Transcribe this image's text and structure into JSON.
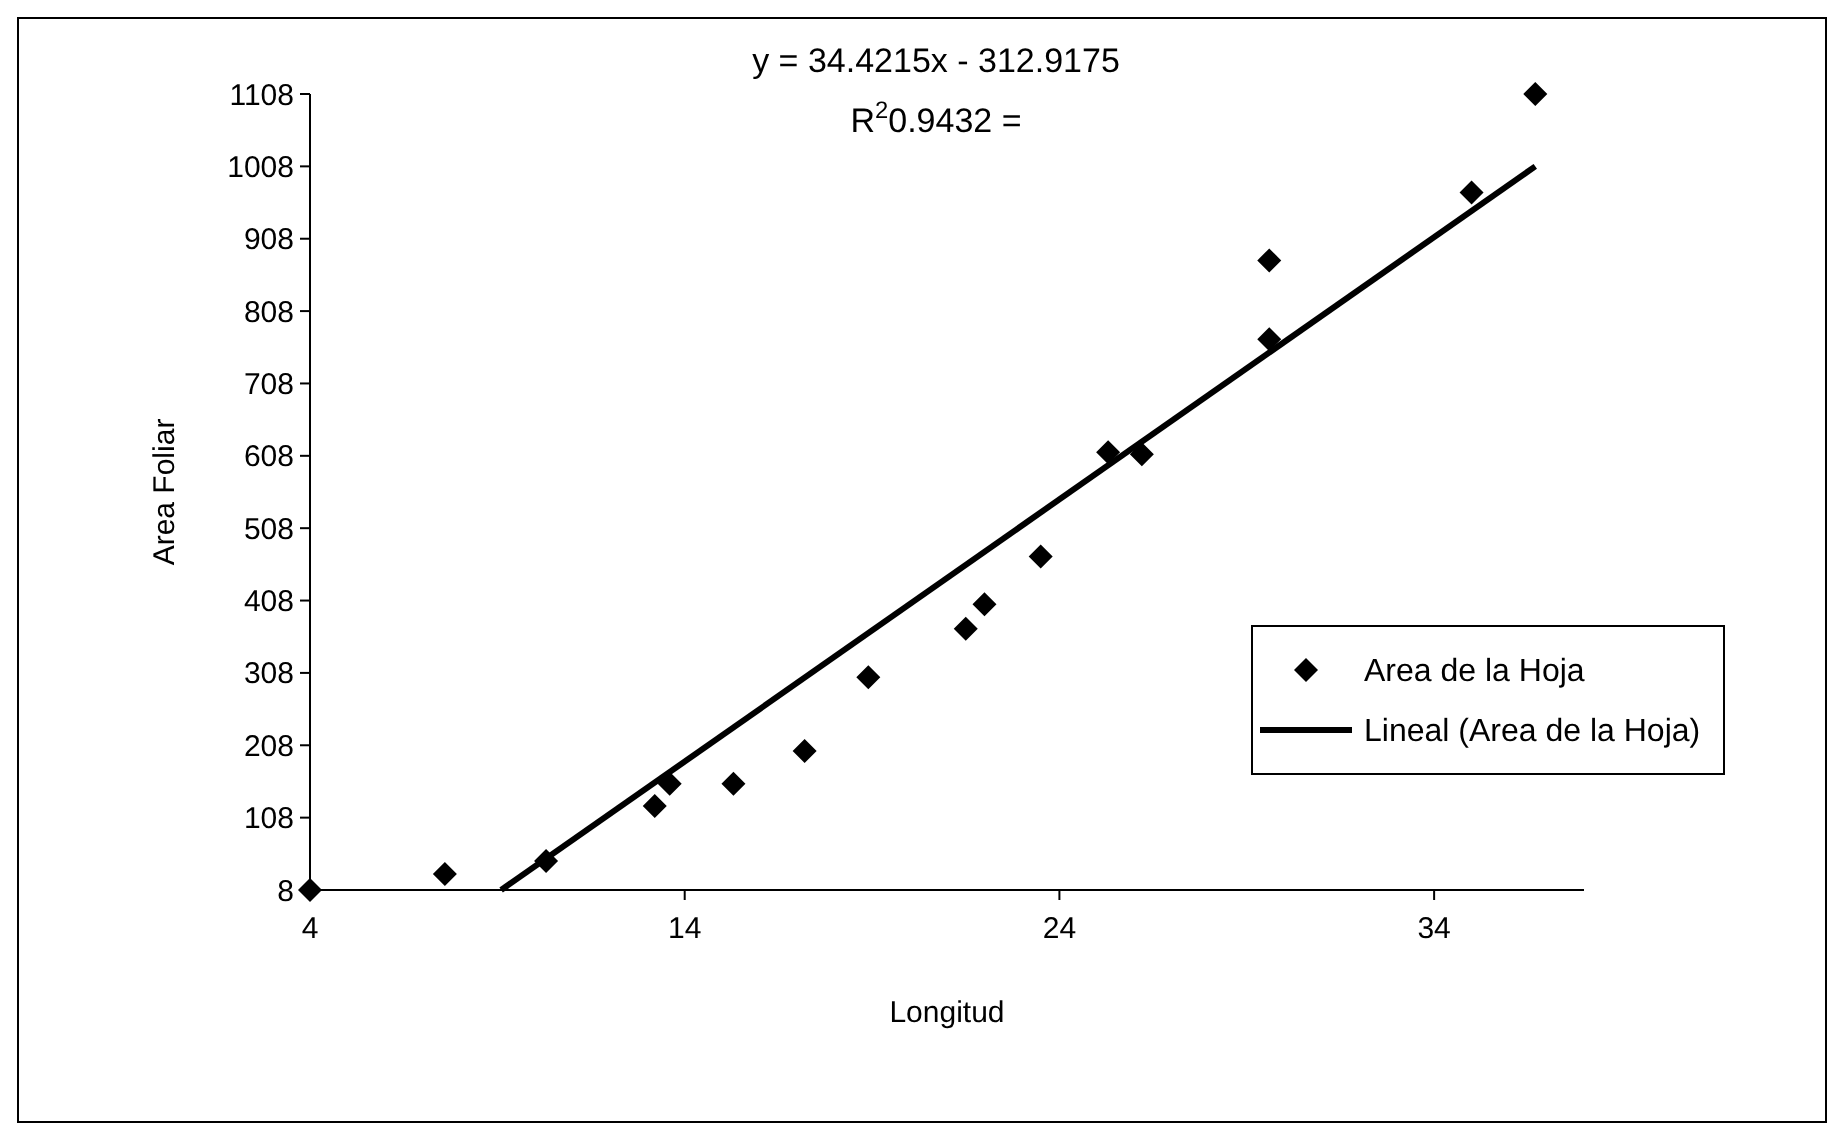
{
  "chart_data": {
    "type": "scatter",
    "xlabel": "Longitud",
    "ylabel": "Area Foliar",
    "annotations": [
      "y = 34.4215x - 312.9175",
      "R$^{2}$0.9432 ="
    ],
    "xlim": [
      4,
      38
    ],
    "xticks": [
      4,
      14,
      24,
      34
    ],
    "ylim": [
      8,
      1108
    ],
    "yticks": [
      8,
      108,
      208,
      308,
      408,
      508,
      608,
      708,
      808,
      908,
      1008,
      1108
    ],
    "grid": false,
    "legend": "right",
    "marker": "diamond",
    "series": [
      {
        "name": "Area de la Hoja",
        "color": "#000000",
        "x": [
          4,
          7.6,
          10.3,
          13.2,
          13.6,
          15.3,
          17.2,
          18.9,
          21.5,
          22.0,
          23.5,
          25.3,
          26.2,
          29.6,
          29.6,
          35.0,
          36.7
        ],
        "values": [
          8,
          30,
          48,
          124,
          155,
          155,
          200,
          302,
          369,
          403,
          469,
          613,
          610,
          878,
          769,
          972,
          1108
        ]
      },
      {
        "name": "Lineal (Area de la Hoja)",
        "color": "#000000",
        "type": "line",
        "marker": "none",
        "line_style": "solid",
        "x": [
          9.1,
          36.7
        ],
        "values": [
          8,
          1008
        ]
      }
    ]
  }
}
